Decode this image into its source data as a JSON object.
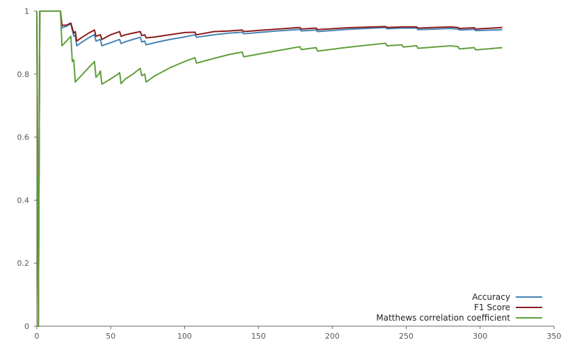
{
  "chart_data": {
    "type": "line",
    "title": "",
    "xlabel": "",
    "ylabel": "",
    "xlim": [
      0,
      350
    ],
    "ylim": [
      0,
      1
    ],
    "x_ticks": [
      "0",
      "50",
      "100",
      "150",
      "200",
      "250",
      "300",
      "350"
    ],
    "y_ticks": [
      "0",
      "0.2",
      "0.4",
      "0.6",
      "0.8",
      "1"
    ],
    "grid": false,
    "legend_position": "bottom-right",
    "series": [
      {
        "name": "Accuracy",
        "color": "#4682b4",
        "points": [
          [
            0,
            1.0
          ],
          [
            1,
            0.0
          ],
          [
            2,
            1.0
          ],
          [
            16,
            1.0
          ],
          [
            17,
            0.947
          ],
          [
            20,
            0.952
          ],
          [
            23,
            0.96
          ],
          [
            25,
            0.92
          ],
          [
            26,
            0.923
          ],
          [
            27,
            0.89
          ],
          [
            30,
            0.9
          ],
          [
            35,
            0.915
          ],
          [
            39,
            0.925
          ],
          [
            40,
            0.905
          ],
          [
            43,
            0.91
          ],
          [
            44,
            0.89
          ],
          [
            50,
            0.9
          ],
          [
            56,
            0.91
          ],
          [
            57,
            0.897
          ],
          [
            60,
            0.903
          ],
          [
            65,
            0.91
          ],
          [
            70,
            0.917
          ],
          [
            71,
            0.902
          ],
          [
            73,
            0.905
          ],
          [
            74,
            0.893
          ],
          [
            80,
            0.9
          ],
          [
            90,
            0.91
          ],
          [
            100,
            0.918
          ],
          [
            107,
            0.925
          ],
          [
            108,
            0.917
          ],
          [
            120,
            0.925
          ],
          [
            130,
            0.93
          ],
          [
            139,
            0.933
          ],
          [
            140,
            0.928
          ],
          [
            160,
            0.936
          ],
          [
            178,
            0.942
          ],
          [
            179,
            0.937
          ],
          [
            189,
            0.94
          ],
          [
            190,
            0.935
          ],
          [
            210,
            0.942
          ],
          [
            236,
            0.948
          ],
          [
            237,
            0.944
          ],
          [
            247,
            0.946
          ],
          [
            257,
            0.946
          ],
          [
            258,
            0.941
          ],
          [
            280,
            0.945
          ],
          [
            285,
            0.943
          ],
          [
            286,
            0.94
          ],
          [
            296,
            0.942
          ],
          [
            297,
            0.938
          ],
          [
            315,
            0.941
          ]
        ]
      },
      {
        "name": "F1 Score",
        "color": "#8b1a1a",
        "points": [
          [
            0,
            1.0
          ],
          [
            1,
            0.0
          ],
          [
            2,
            1.0
          ],
          [
            16,
            1.0
          ],
          [
            17,
            0.955
          ],
          [
            20,
            0.955
          ],
          [
            23,
            0.962
          ],
          [
            25,
            0.93
          ],
          [
            26,
            0.935
          ],
          [
            27,
            0.905
          ],
          [
            30,
            0.915
          ],
          [
            35,
            0.93
          ],
          [
            39,
            0.94
          ],
          [
            40,
            0.92
          ],
          [
            43,
            0.925
          ],
          [
            44,
            0.91
          ],
          [
            50,
            0.925
          ],
          [
            56,
            0.935
          ],
          [
            57,
            0.92
          ],
          [
            60,
            0.925
          ],
          [
            65,
            0.93
          ],
          [
            70,
            0.935
          ],
          [
            71,
            0.922
          ],
          [
            73,
            0.925
          ],
          [
            74,
            0.915
          ],
          [
            80,
            0.918
          ],
          [
            90,
            0.925
          ],
          [
            100,
            0.932
          ],
          [
            107,
            0.933
          ],
          [
            108,
            0.925
          ],
          [
            120,
            0.935
          ],
          [
            130,
            0.937
          ],
          [
            139,
            0.94
          ],
          [
            140,
            0.935
          ],
          [
            160,
            0.942
          ],
          [
            178,
            0.948
          ],
          [
            179,
            0.943
          ],
          [
            189,
            0.946
          ],
          [
            190,
            0.941
          ],
          [
            210,
            0.947
          ],
          [
            236,
            0.951
          ],
          [
            237,
            0.948
          ],
          [
            247,
            0.95
          ],
          [
            257,
            0.95
          ],
          [
            258,
            0.946
          ],
          [
            280,
            0.95
          ],
          [
            285,
            0.948
          ],
          [
            286,
            0.945
          ],
          [
            296,
            0.947
          ],
          [
            297,
            0.943
          ],
          [
            315,
            0.948
          ]
        ]
      },
      {
        "name": "Matthews correlation coefficient",
        "color": "#5f9e3a",
        "points": [
          [
            0,
            1.0
          ],
          [
            1,
            0.0
          ],
          [
            2,
            1.0
          ],
          [
            16,
            1.0
          ],
          [
            17,
            0.89
          ],
          [
            20,
            0.905
          ],
          [
            23,
            0.92
          ],
          [
            24,
            0.84
          ],
          [
            25,
            0.845
          ],
          [
            26,
            0.775
          ],
          [
            30,
            0.795
          ],
          [
            35,
            0.82
          ],
          [
            39,
            0.84
          ],
          [
            40,
            0.79
          ],
          [
            42,
            0.8
          ],
          [
            43,
            0.81
          ],
          [
            44,
            0.768
          ],
          [
            50,
            0.785
          ],
          [
            55,
            0.8
          ],
          [
            56,
            0.805
          ],
          [
            57,
            0.77
          ],
          [
            60,
            0.785
          ],
          [
            65,
            0.8
          ],
          [
            69,
            0.815
          ],
          [
            70,
            0.818
          ],
          [
            71,
            0.795
          ],
          [
            73,
            0.8
          ],
          [
            74,
            0.775
          ],
          [
            80,
            0.795
          ],
          [
            90,
            0.82
          ],
          [
            100,
            0.84
          ],
          [
            107,
            0.852
          ],
          [
            108,
            0.835
          ],
          [
            120,
            0.85
          ],
          [
            130,
            0.862
          ],
          [
            139,
            0.87
          ],
          [
            140,
            0.855
          ],
          [
            160,
            0.872
          ],
          [
            178,
            0.887
          ],
          [
            179,
            0.878
          ],
          [
            189,
            0.884
          ],
          [
            190,
            0.873
          ],
          [
            210,
            0.885
          ],
          [
            236,
            0.898
          ],
          [
            237,
            0.89
          ],
          [
            247,
            0.893
          ],
          [
            248,
            0.886
          ],
          [
            257,
            0.89
          ],
          [
            258,
            0.882
          ],
          [
            280,
            0.89
          ],
          [
            285,
            0.887
          ],
          [
            286,
            0.88
          ],
          [
            296,
            0.884
          ],
          [
            297,
            0.877
          ],
          [
            315,
            0.884
          ]
        ]
      }
    ]
  }
}
